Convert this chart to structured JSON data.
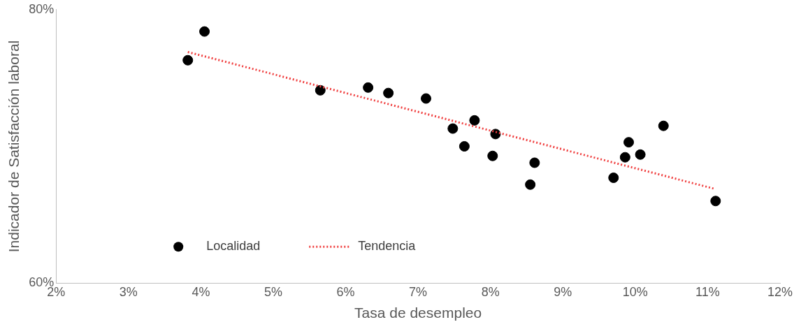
{
  "chart_data": {
    "type": "scatter",
    "xlabel": "Tasa de desempleo",
    "ylabel": "Indicador de Satisfacción laboral",
    "xlim": [
      2,
      12
    ],
    "ylim": [
      60,
      80
    ],
    "xticks": [
      {
        "value": 2,
        "label": "2%"
      },
      {
        "value": 3,
        "label": "3%"
      },
      {
        "value": 4,
        "label": "4%"
      },
      {
        "value": 5,
        "label": "5%"
      },
      {
        "value": 6,
        "label": "6%"
      },
      {
        "value": 7,
        "label": "7%"
      },
      {
        "value": 8,
        "label": "8%"
      },
      {
        "value": 9,
        "label": "9%"
      },
      {
        "value": 10,
        "label": "10%"
      },
      {
        "value": 11,
        "label": "11%"
      },
      {
        "value": 12,
        "label": "12%"
      }
    ],
    "yticks": [
      {
        "value": 60,
        "label": "60%"
      },
      {
        "value": 80,
        "label": "80%"
      }
    ],
    "grid": false,
    "legend": "bottom left",
    "series": [
      {
        "name": "Localidad",
        "type": "scatter",
        "color": "#000000",
        "marker": "circle",
        "x": [
          3.82,
          4.05,
          5.65,
          6.31,
          6.59,
          7.11,
          7.48,
          7.64,
          7.78,
          8.03,
          8.07,
          8.55,
          8.61,
          9.7,
          9.86,
          9.91,
          10.07,
          10.39,
          11.11
        ],
        "values": [
          76.3,
          78.4,
          74.1,
          74.3,
          73.9,
          73.5,
          71.3,
          70.0,
          71.9,
          69.3,
          70.9,
          67.2,
          68.8,
          67.7,
          69.2,
          70.3,
          69.4,
          71.5,
          66.0
        ]
      },
      {
        "name": "Tendencia",
        "type": "line",
        "color": "#f04040",
        "marker": "none",
        "line_style": "dotted",
        "x": [
          3.82,
          11.09
        ],
        "values": [
          76.9,
          66.9
        ]
      }
    ]
  }
}
